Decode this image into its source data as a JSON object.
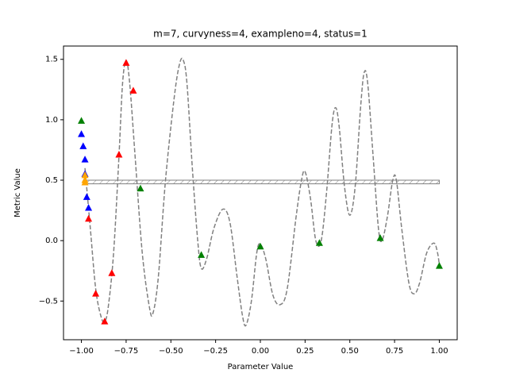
{
  "chart_data": {
    "type": "scatter",
    "title": "m=7, curvyness=4, exampleno=4, status=1",
    "x_label": "Parameter Value",
    "y_label": "Metric Value",
    "xlim": [
      -1.1,
      1.1
    ],
    "ylim": [
      -0.82,
      1.61
    ],
    "xticks": [
      {
        "value": -1,
        "label": "−1.00"
      },
      {
        "value": -0.75,
        "label": "−0.75"
      },
      {
        "value": -0.5,
        "label": "−0.50"
      },
      {
        "value": -0.25,
        "label": "−0.25"
      },
      {
        "value": 0,
        "label": "0.00"
      },
      {
        "value": 0.25,
        "label": "0.25"
      },
      {
        "value": 0.5,
        "label": "0.50"
      },
      {
        "value": 0.75,
        "label": "0.75"
      },
      {
        "value": 1,
        "label": "1.00"
      }
    ],
    "yticks": [
      {
        "value": -0.5,
        "label": "−0.5"
      },
      {
        "value": 0,
        "label": "0.0"
      },
      0.5,
      {
        "value": 1,
        "label": "1.0"
      },
      1.5
    ],
    "curve": {
      "color": "#808080",
      "x": [
        -0.98,
        -0.95,
        -0.92,
        -0.89,
        -0.87,
        -0.85,
        -0.82,
        -0.79,
        -0.77,
        -0.75,
        -0.73,
        -0.7,
        -0.66,
        -0.62,
        -0.6,
        -0.57,
        -0.53,
        -0.48,
        -0.45,
        -0.43,
        -0.41,
        -0.38,
        -0.35,
        -0.33,
        -0.3,
        -0.26,
        -0.21,
        -0.17,
        -0.13,
        -0.1,
        -0.08,
        -0.05,
        -0.02,
        0,
        0.03,
        0.07,
        0.11,
        0.15,
        0.2,
        0.23,
        0.25,
        0.28,
        0.31,
        0.34,
        0.37,
        0.4,
        0.42,
        0.44,
        0.47,
        0.5,
        0.53,
        0.56,
        0.58,
        0.6,
        0.63,
        0.66,
        0.68,
        0.71,
        0.74,
        0.76,
        0.79,
        0.83,
        0.86,
        0.89,
        0.93,
        0.97,
        0.99,
        1.0
      ],
      "y": [
        0.6,
        0.1,
        -0.4,
        -0.63,
        -0.67,
        -0.55,
        -0.1,
        0.7,
        1.3,
        1.49,
        1.3,
        0.7,
        -0.1,
        -0.55,
        -0.6,
        -0.3,
        0.5,
        1.2,
        1.47,
        1.49,
        1.3,
        0.6,
        0.0,
        -0.23,
        -0.15,
        0.1,
        0.26,
        0.15,
        -0.3,
        -0.62,
        -0.7,
        -0.5,
        -0.1,
        -0.03,
        -0.15,
        -0.45,
        -0.53,
        -0.4,
        0.2,
        0.5,
        0.57,
        0.35,
        0.0,
        0.0,
        0.4,
        0.95,
        1.1,
        0.95,
        0.45,
        0.21,
        0.45,
        1.1,
        1.39,
        1.3,
        0.7,
        0.1,
        0.0,
        0.2,
        0.5,
        0.5,
        0.1,
        -0.35,
        -0.44,
        -0.35,
        -0.1,
        -0.02,
        -0.1,
        -0.2
      ]
    },
    "band": {
      "color": "#808080",
      "x": [
        -0.98,
        1.0
      ],
      "y": [
        0.47,
        0.5
      ]
    },
    "series": [
      {
        "color": "#ff0000",
        "x": [
          -0.96,
          -0.92,
          -0.87,
          -0.83,
          -0.79,
          -0.75,
          -0.71
        ],
        "values": [
          0.18,
          -0.44,
          -0.67,
          -0.27,
          0.71,
          1.47,
          1.24
        ]
      },
      {
        "color": "#0000ff",
        "x": [
          -1.0,
          -0.99,
          -0.98,
          -0.98,
          -0.97,
          -0.96
        ],
        "values": [
          0.88,
          0.78,
          0.67,
          0.55,
          0.36,
          0.27
        ]
      },
      {
        "color": "#008000",
        "x": [
          -1.0,
          -0.67,
          -0.33,
          0.0,
          0.33,
          0.67,
          1.0
        ],
        "values": [
          0.99,
          0.43,
          -0.12,
          -0.05,
          -0.02,
          0.02,
          -0.21
        ]
      },
      {
        "color": "#ffa500",
        "x": [
          -0.98,
          -0.98,
          -0.98
        ],
        "values": [
          0.54,
          0.5,
          0.48
        ]
      }
    ]
  }
}
